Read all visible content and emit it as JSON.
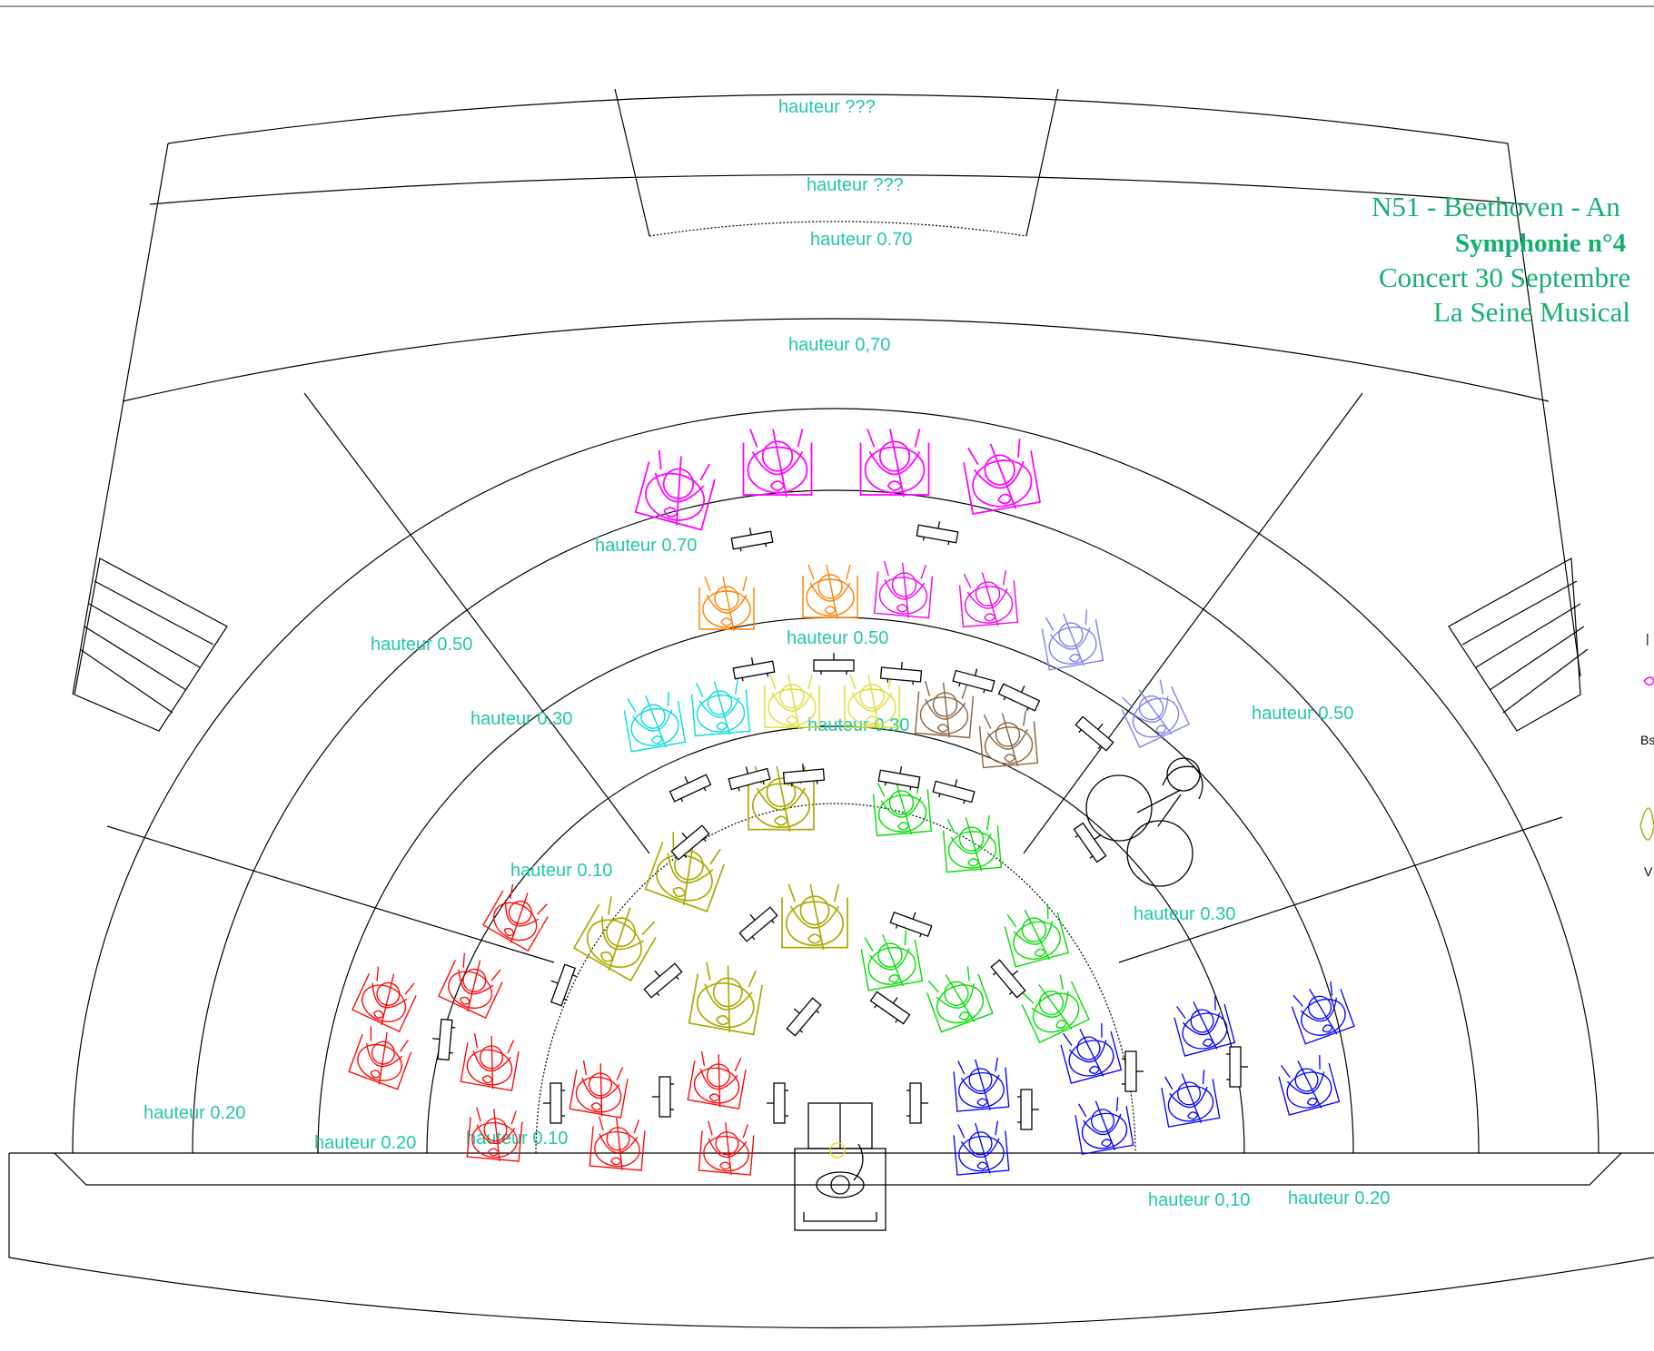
{
  "title": {
    "line1": "N51 - Beethoven - An",
    "line2": "Symphonie n°4",
    "line3": "Concert 30 Septembre",
    "line4": "La Seine Musical"
  },
  "levels": [
    "hauteur ???",
    "hauteur ???",
    "hauteur 0.70",
    "hauteur 0,70",
    "hauteur 0.70",
    "hauteur 0.50",
    "hauteur 0.50",
    "hauteur 0.50",
    "hauteur 0.30",
    "hauteur 0.30",
    "hauteur 0.30",
    "hauteur 0.10",
    "hauteur 0.20",
    "hauteur 0.20",
    "hauteur 0.10",
    "hauteur 0,10",
    "hauteur 0.20"
  ],
  "legend_fragments": [
    "Bs",
    "V"
  ],
  "colors": {
    "level_text": "#1fc9a3",
    "title_text": "#14b06b",
    "violin1": "#ff0000",
    "violin2": "#0000ff",
    "viola": "#aaaa00",
    "cello": "#00dd00",
    "bass": "#ff00ff",
    "flute": "#00dddd",
    "clarinet": "#dddd33",
    "oboe": "#ff8000",
    "bassoon": "#ee00ee",
    "horn": "#8080ee",
    "trumpet": "#8b6040",
    "timpani": "#000000"
  }
}
